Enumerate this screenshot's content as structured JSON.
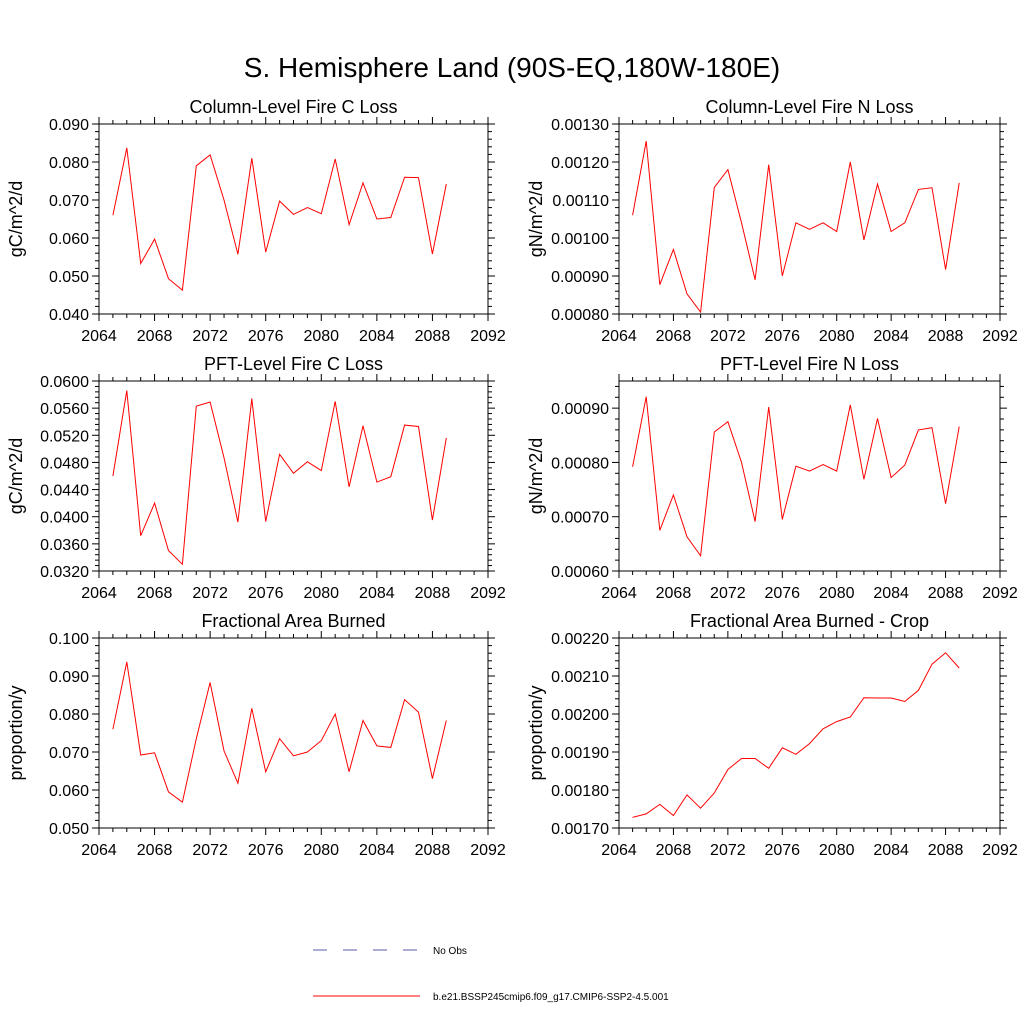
{
  "figure_title": "S. Hemisphere Land (90S-EQ,180W-180E)",
  "legend": {
    "items": [
      {
        "label": "No Obs",
        "color": "#5a5aa8",
        "style": "dashed"
      },
      {
        "label": "b.e21.BSSP245cmip6.f09_g17.CMIP6-SSP2-4.5.001",
        "color": "#ff0000",
        "style": "solid"
      }
    ]
  },
  "chart_data": [
    {
      "type": "line",
      "title": "Column-Level Fire C Loss",
      "xlabel": "",
      "ylabel": "gC/m^2/d",
      "xlim": [
        2064,
        2092
      ],
      "ylim": [
        0.04,
        0.09
      ],
      "xticks": [
        "2064",
        "2068",
        "2072",
        "2076",
        "2080",
        "2084",
        "2088",
        "2092"
      ],
      "yticks": [
        "0.040",
        "0.050",
        "0.060",
        "0.070",
        "0.080",
        "0.090"
      ],
      "x": [
        2065,
        2066,
        2067,
        2068,
        2069,
        2070,
        2071,
        2072,
        2073,
        2074,
        2075,
        2076,
        2077,
        2078,
        2079,
        2080,
        2081,
        2082,
        2083,
        2084,
        2085,
        2086,
        2087,
        2088,
        2089
      ],
      "series": [
        {
          "name": "b.e21.BSSP245cmip6.f09_g17.CMIP6-SSP2-4.5.001",
          "color": "#ff0000",
          "values": [
            0.066,
            0.0837,
            0.0533,
            0.0597,
            0.0493,
            0.0463,
            0.079,
            0.0819,
            0.07,
            0.0557,
            0.081,
            0.0563,
            0.0697,
            0.0662,
            0.068,
            0.0664,
            0.0808,
            0.0635,
            0.0745,
            0.065,
            0.0654,
            0.076,
            0.0759,
            0.0558,
            0.0742
          ]
        }
      ]
    },
    {
      "type": "line",
      "title": "Column-Level Fire N Loss",
      "xlabel": "",
      "ylabel": "gN/m^2/d",
      "xlim": [
        2064,
        2092
      ],
      "ylim": [
        0.0008,
        0.0013
      ],
      "xticks": [
        "2064",
        "2068",
        "2072",
        "2076",
        "2080",
        "2084",
        "2088",
        "2092"
      ],
      "yticks": [
        "0.00080",
        "0.00090",
        "0.00100",
        "0.00110",
        "0.00120",
        "0.00130"
      ],
      "x": [
        2065,
        2066,
        2067,
        2068,
        2069,
        2070,
        2071,
        2072,
        2073,
        2074,
        2075,
        2076,
        2077,
        2078,
        2079,
        2080,
        2081,
        2082,
        2083,
        2084,
        2085,
        2086,
        2087,
        2088,
        2089
      ],
      "series": [
        {
          "name": "b.e21.BSSP245cmip6.f09_g17.CMIP6-SSP2-4.5.001",
          "color": "#ff0000",
          "values": [
            0.00106,
            0.001255,
            0.000877,
            0.00097,
            0.000853,
            0.000805,
            0.001133,
            0.00118,
            0.00104,
            0.00089,
            0.001193,
            0.0009,
            0.00104,
            0.001023,
            0.00104,
            0.001017,
            0.0012,
            0.000995,
            0.001142,
            0.001017,
            0.00104,
            0.001128,
            0.001132,
            0.000917,
            0.001145
          ]
        }
      ]
    },
    {
      "type": "line",
      "title": "PFT-Level Fire C Loss",
      "xlabel": "",
      "ylabel": "gC/m^2/d",
      "xlim": [
        2064,
        2092
      ],
      "ylim": [
        0.032,
        0.06
      ],
      "xticks": [
        "2064",
        "2068",
        "2072",
        "2076",
        "2080",
        "2084",
        "2088",
        "2092"
      ],
      "yticks": [
        "0.0320",
        "0.0360",
        "0.0400",
        "0.0440",
        "0.0480",
        "0.0520",
        "0.0560",
        "0.0600"
      ],
      "x": [
        2065,
        2066,
        2067,
        2068,
        2069,
        2070,
        2071,
        2072,
        2073,
        2074,
        2075,
        2076,
        2077,
        2078,
        2079,
        2080,
        2081,
        2082,
        2083,
        2084,
        2085,
        2086,
        2087,
        2088,
        2089
      ],
      "series": [
        {
          "name": "b.e21.BSSP245cmip6.f09_g17.CMIP6-SSP2-4.5.001",
          "color": "#ff0000",
          "values": [
            0.046,
            0.0586,
            0.0372,
            0.042,
            0.035,
            0.033,
            0.0563,
            0.0569,
            0.0487,
            0.0392,
            0.0574,
            0.0393,
            0.0492,
            0.0464,
            0.0481,
            0.0468,
            0.057,
            0.0444,
            0.0534,
            0.0451,
            0.0459,
            0.0535,
            0.0533,
            0.0395,
            0.0516
          ]
        }
      ]
    },
    {
      "type": "line",
      "title": "PFT-Level Fire N Loss",
      "xlabel": "",
      "ylabel": "gN/m^2/d",
      "xlim": [
        2064,
        2092
      ],
      "ylim": [
        0.0006,
        0.00095
      ],
      "xticks": [
        "2064",
        "2068",
        "2072",
        "2076",
        "2080",
        "2084",
        "2088",
        "2092"
      ],
      "yticks": [
        "0.00060",
        "0.00070",
        "0.00080",
        "0.00090"
      ],
      "x": [
        2065,
        2066,
        2067,
        2068,
        2069,
        2070,
        2071,
        2072,
        2073,
        2074,
        2075,
        2076,
        2077,
        2078,
        2079,
        2080,
        2081,
        2082,
        2083,
        2084,
        2085,
        2086,
        2087,
        2088,
        2089
      ],
      "series": [
        {
          "name": "b.e21.BSSP245cmip6.f09_g17.CMIP6-SSP2-4.5.001",
          "color": "#ff0000",
          "values": [
            0.000792,
            0.000921,
            0.000675,
            0.00074,
            0.000663,
            0.000628,
            0.000856,
            0.000875,
            0.0008,
            0.000691,
            0.000902,
            0.000695,
            0.000793,
            0.000784,
            0.000796,
            0.000784,
            0.000906,
            0.000769,
            0.000881,
            0.000772,
            0.000795,
            0.00086,
            0.000864,
            0.000724,
            0.000866
          ]
        }
      ]
    },
    {
      "type": "line",
      "title": "Fractional Area Burned",
      "xlabel": "",
      "ylabel": "proportion/y",
      "xlim": [
        2064,
        2092
      ],
      "ylim": [
        0.05,
        0.1
      ],
      "xticks": [
        "2064",
        "2068",
        "2072",
        "2076",
        "2080",
        "2084",
        "2088",
        "2092"
      ],
      "yticks": [
        "0.050",
        "0.060",
        "0.070",
        "0.080",
        "0.090",
        "0.100"
      ],
      "x": [
        2065,
        2066,
        2067,
        2068,
        2069,
        2070,
        2071,
        2072,
        2073,
        2074,
        2075,
        2076,
        2077,
        2078,
        2079,
        2080,
        2081,
        2082,
        2083,
        2084,
        2085,
        2086,
        2087,
        2088,
        2089
      ],
      "series": [
        {
          "name": "b.e21.BSSP245cmip6.f09_g17.CMIP6-SSP2-4.5.001",
          "color": "#ff0000",
          "values": [
            0.076,
            0.0937,
            0.0692,
            0.0698,
            0.0595,
            0.0568,
            0.0735,
            0.0883,
            0.0703,
            0.0618,
            0.0815,
            0.0648,
            0.0735,
            0.069,
            0.07,
            0.073,
            0.08,
            0.0648,
            0.0783,
            0.0716,
            0.0712,
            0.0838,
            0.0805,
            0.063,
            0.0783
          ]
        }
      ]
    },
    {
      "type": "line",
      "title": "Fractional Area Burned - Crop",
      "xlabel": "",
      "ylabel": "proportion/y",
      "xlim": [
        2064,
        2092
      ],
      "ylim": [
        0.0017,
        0.0022
      ],
      "xticks": [
        "2064",
        "2068",
        "2072",
        "2076",
        "2080",
        "2084",
        "2088",
        "2092"
      ],
      "yticks": [
        "0.00170",
        "0.00180",
        "0.00190",
        "0.00200",
        "0.00210",
        "0.00220"
      ],
      "x": [
        2065,
        2066,
        2067,
        2068,
        2069,
        2070,
        2071,
        2072,
        2073,
        2074,
        2075,
        2076,
        2077,
        2078,
        2079,
        2080,
        2081,
        2082,
        2083,
        2084,
        2085,
        2086,
        2087,
        2088,
        2089
      ],
      "series": [
        {
          "name": "b.e21.BSSP245cmip6.f09_g17.CMIP6-SSP2-4.5.001",
          "color": "#ff0000",
          "values": [
            0.001728,
            0.001737,
            0.001762,
            0.001733,
            0.001787,
            0.001752,
            0.001792,
            0.001854,
            0.001883,
            0.001883,
            0.001857,
            0.001911,
            0.001894,
            0.001922,
            0.001961,
            0.00198,
            0.001992,
            0.002043,
            0.002042,
            0.002042,
            0.002033,
            0.002062,
            0.002131,
            0.002161,
            0.002121
          ]
        }
      ]
    }
  ]
}
